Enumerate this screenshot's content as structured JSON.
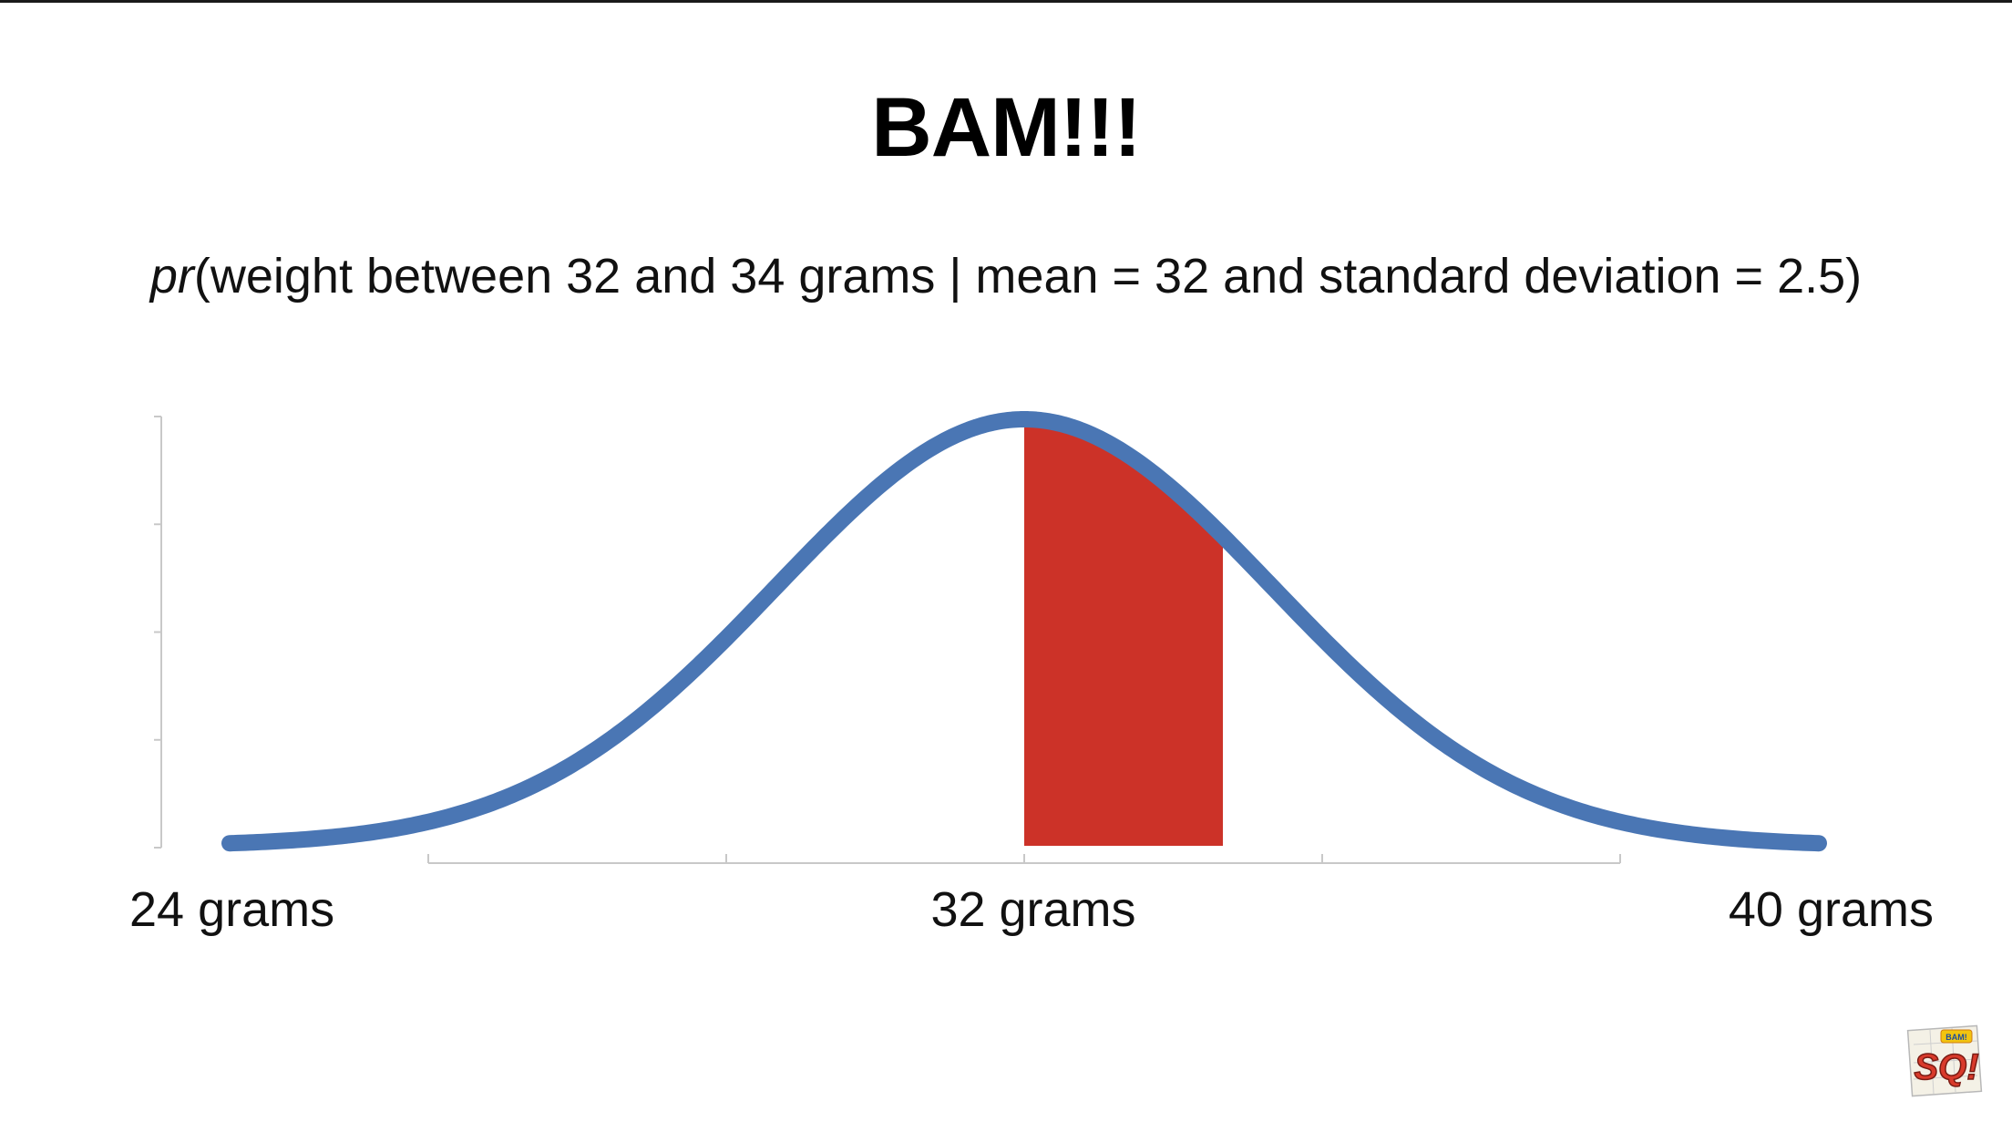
{
  "title": "BAM!!!",
  "subtitle": {
    "prefix": "pr",
    "text": "(weight between 32 and 34 grams | mean = 32 and standard deviation = 2.5)"
  },
  "logo": {
    "icon": "statquest-bam-logo",
    "text": "SQ!"
  },
  "colors": {
    "curve": "#4a76b4",
    "shaded_area": "#cc3228",
    "axis": "#c8c8c8",
    "text": "#111111"
  },
  "chart_data": {
    "type": "area",
    "distribution": "normal",
    "mean": 32,
    "sd": 2.5,
    "xlim": [
      24,
      40
    ],
    "shaded_range": [
      32,
      34
    ],
    "x_tick_labels": [
      {
        "value": 24,
        "label": "24 grams"
      },
      {
        "value": 32,
        "label": "32 grams"
      },
      {
        "value": 40,
        "label": "40 grams"
      }
    ],
    "x_minor_ticks": [
      26,
      29,
      32,
      35,
      38
    ],
    "y_axis_ticks": 5,
    "title": "BAM!!!",
    "xlabel": "",
    "ylabel": ""
  }
}
